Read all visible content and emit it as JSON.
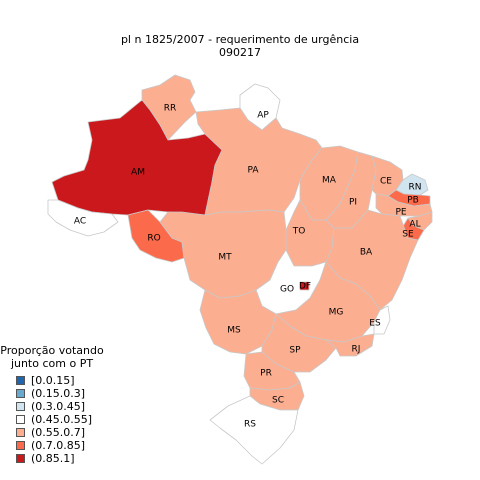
{
  "title": {
    "line1": "pl   n  1825/2007 - requerimento de urgência",
    "line2": "090217"
  },
  "legend": {
    "title_line1": "Proporção votando",
    "title_line2": "junto com o PT",
    "items": [
      {
        "label": "[0.0.15]",
        "color": "#2166ac"
      },
      {
        "label": "(0.15.0.3]",
        "color": "#67a9cf"
      },
      {
        "label": "(0.3.0.45]",
        "color": "#d1e5f0"
      },
      {
        "label": "(0.45.0.55]",
        "color": "#ffffff"
      },
      {
        "label": "(0.55.0.7]",
        "color": "#fcae91"
      },
      {
        "label": "(0.7.0.85]",
        "color": "#fb6a4a"
      },
      {
        "label": "(0.85.1]",
        "color": "#cb181d"
      }
    ]
  },
  "states": [
    {
      "code": "RR",
      "class": "(0.55.0.7]"
    },
    {
      "code": "AP",
      "class": "(0.45.0.55]"
    },
    {
      "code": "AM",
      "class": "(0.85.1]"
    },
    {
      "code": "PA",
      "class": "(0.55.0.7]"
    },
    {
      "code": "MA",
      "class": "(0.55.0.7]"
    },
    {
      "code": "CE",
      "class": "(0.55.0.7]"
    },
    {
      "code": "RN",
      "class": "(0.3.0.45]"
    },
    {
      "code": "PB",
      "class": "(0.7.0.85]"
    },
    {
      "code": "PE",
      "class": "(0.55.0.7]"
    },
    {
      "code": "AL",
      "class": "(0.55.0.7]"
    },
    {
      "code": "SE",
      "class": "(0.7.0.85]"
    },
    {
      "code": "PI",
      "class": "(0.55.0.7]"
    },
    {
      "code": "AC",
      "class": "(0.45.0.55]"
    },
    {
      "code": "RO",
      "class": "(0.7.0.85]"
    },
    {
      "code": "TO",
      "class": "(0.55.0.7]"
    },
    {
      "code": "BA",
      "class": "(0.55.0.7]"
    },
    {
      "code": "MT",
      "class": "(0.55.0.7]"
    },
    {
      "code": "GO",
      "class": "(0.45.0.55]"
    },
    {
      "code": "DF",
      "class": "(0.85.1]"
    },
    {
      "code": "MG",
      "class": "(0.55.0.7]"
    },
    {
      "code": "ES",
      "class": "(0.45.0.55]"
    },
    {
      "code": "MS",
      "class": "(0.55.0.7]"
    },
    {
      "code": "SP",
      "class": "(0.55.0.7]"
    },
    {
      "code": "RJ",
      "class": "(0.55.0.7]"
    },
    {
      "code": "PR",
      "class": "(0.55.0.7]"
    },
    {
      "code": "SC",
      "class": "(0.55.0.7]"
    },
    {
      "code": "RS",
      "class": "(0.45.0.55]"
    }
  ]
}
